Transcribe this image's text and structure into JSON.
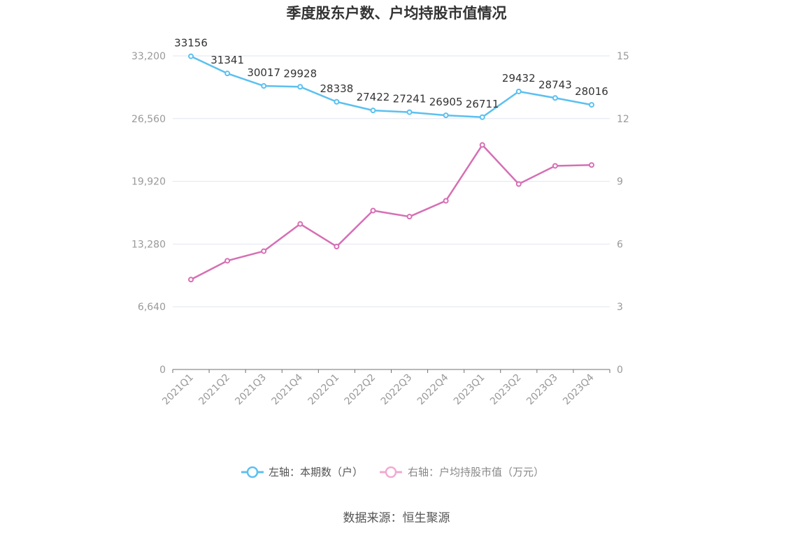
{
  "chart_data": {
    "type": "line",
    "title": "季度股东户数、户均持股市值情况",
    "categories": [
      "2021Q1",
      "2021Q2",
      "2021Q3",
      "2021Q4",
      "2022Q1",
      "2022Q2",
      "2022Q3",
      "2022Q4",
      "2023Q1",
      "2023Q2",
      "2023Q3",
      "2023Q4"
    ],
    "left_axis": {
      "ylim": [
        0,
        33200
      ],
      "ticks": [
        "0",
        "6,640",
        "13,280",
        "19,920",
        "26,560",
        "33,200"
      ],
      "tick_values": [
        0,
        6640,
        13280,
        19920,
        26560,
        33200
      ]
    },
    "right_axis": {
      "ylim": [
        0,
        15
      ],
      "ticks": [
        "0",
        "3",
        "6",
        "9",
        "12",
        "15"
      ],
      "tick_values": [
        0,
        3,
        6,
        9,
        12,
        15
      ]
    },
    "series": [
      {
        "name": "左轴：本期数（户）",
        "axis": "left",
        "color": "#5bc0f0",
        "values": [
          33156,
          31341,
          30017,
          29928,
          28338,
          27422,
          27241,
          26905,
          26711,
          29432,
          28743,
          28016
        ],
        "labels": [
          "33156",
          "31341",
          "30017",
          "29928",
          "28338",
          "27422",
          "27241",
          "26905",
          "26711",
          "29432",
          "28743",
          "28016"
        ]
      },
      {
        "name": "右轴：户均持股市值（万元）",
        "axis": "right",
        "color": "#d66fb4",
        "values": [
          4.3,
          5.2,
          5.66,
          6.96,
          5.88,
          7.6,
          7.31,
          8.07,
          10.74,
          8.87,
          9.74,
          9.78
        ]
      }
    ],
    "grid": true,
    "legend": "bottom-center",
    "source": "数据来源：恒生聚源"
  }
}
